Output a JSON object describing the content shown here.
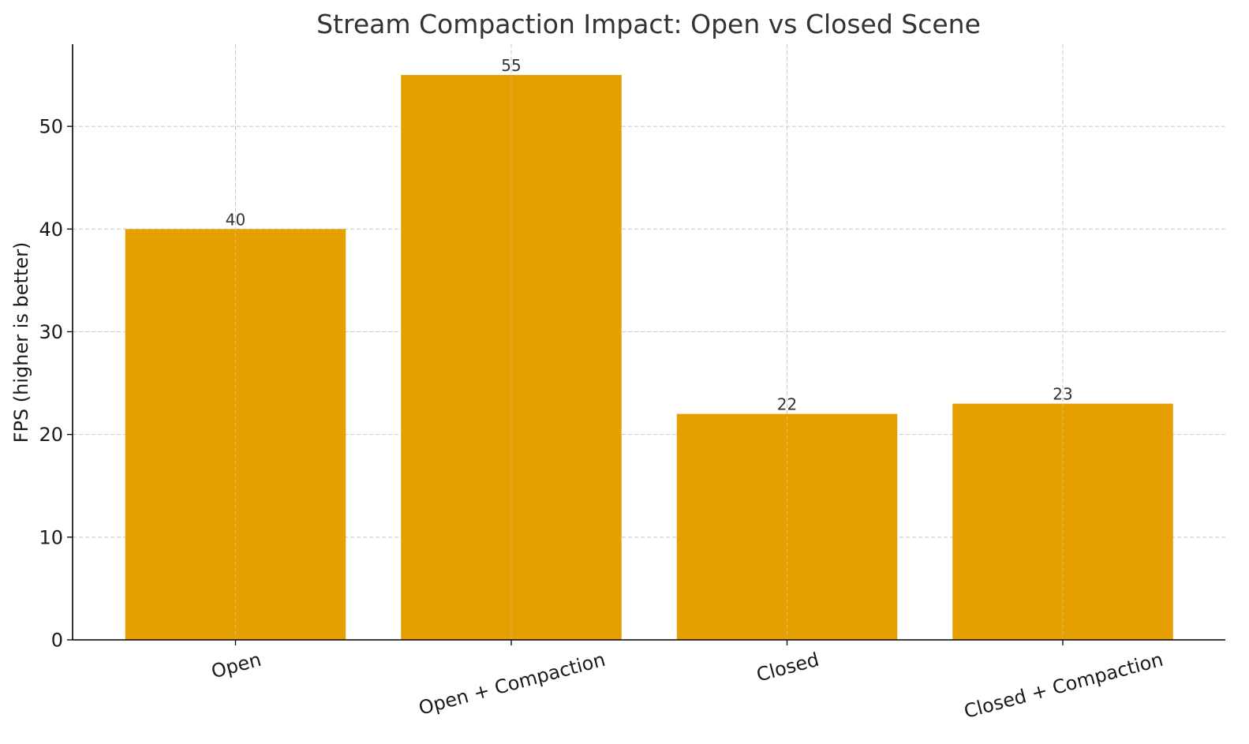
{
  "chart_data": {
    "type": "bar",
    "title": "Stream Compaction Impact: Open vs Closed Scene",
    "xlabel": "",
    "ylabel": "FPS (higher is better)",
    "categories": [
      "Open",
      "Open + Compaction",
      "Closed",
      "Closed + Compaction"
    ],
    "values": [
      40,
      55,
      22,
      23
    ],
    "ylim": [
      0,
      58
    ],
    "yticks": [
      0,
      10,
      20,
      30,
      40,
      50
    ],
    "grid": true,
    "bar_color": "#E69F00"
  }
}
